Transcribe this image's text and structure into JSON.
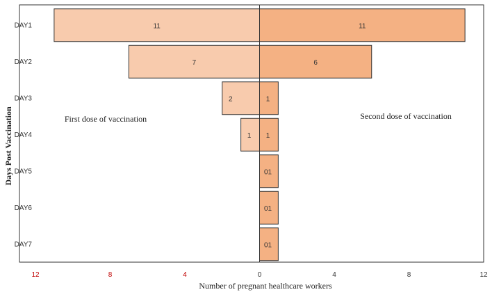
{
  "chart_data": {
    "type": "bar",
    "orientation": "horizontal-butterfly",
    "categories": [
      "DAY1",
      "DAY2",
      "DAY3",
      "DAY4",
      "DAY5",
      "DAY6",
      "DAY7"
    ],
    "series": [
      {
        "values": [
          11,
          7,
          2,
          1,
          0,
          0,
          0
        ],
        "labels": [
          "11",
          "7",
          "2",
          "1",
          "",
          "",
          ""
        ],
        "side": "left",
        "color": "#f8cbad"
      },
      {
        "values": [
          11,
          6,
          1,
          1,
          1,
          1,
          1
        ],
        "labels": [
          "11",
          "6",
          "1",
          "1",
          "01",
          "01",
          "01"
        ],
        "side": "right",
        "color": "#f4b183"
      }
    ],
    "annotations": {
      "left": "First dose of vaccination",
      "right": "Second dose of vaccination"
    },
    "xlabel": "Number of pregnant healthcare workers",
    "ylabel": "Days Post Vaccination",
    "xlim": [
      -12,
      12
    ],
    "xticks": [
      {
        "value": -12,
        "label": "12",
        "color": "#c00000"
      },
      {
        "value": -8,
        "label": "8",
        "color": "#c00000"
      },
      {
        "value": -4,
        "label": "4",
        "color": "#c00000"
      },
      {
        "value": 0,
        "label": "0",
        "color": "#333333"
      },
      {
        "value": 4,
        "label": "4",
        "color": "#333333"
      },
      {
        "value": 8,
        "label": "8",
        "color": "#333333"
      },
      {
        "value": 12,
        "label": "12",
        "color": "#333333"
      }
    ],
    "grid": false,
    "legend": "none",
    "colors": {
      "border": "#333333",
      "center_line": "#333333"
    }
  }
}
